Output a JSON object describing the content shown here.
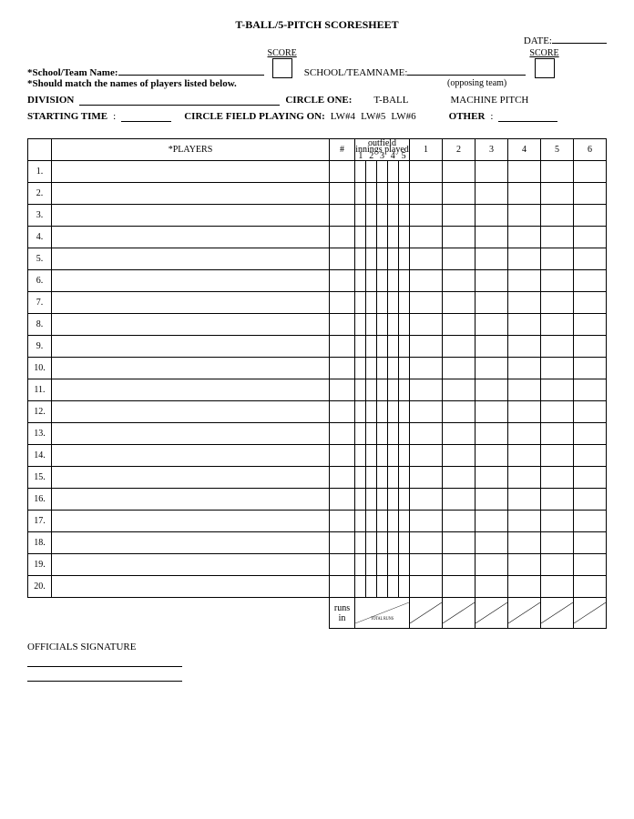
{
  "title": "T-BALL/5-PITCH SCORESHEET",
  "date_label": "DATE:",
  "score_label": "SCORE",
  "school_team_label": "*School/Team Name:",
  "opp_school_label": "SCHOOL/TEAMNAME:",
  "opposing_note": "(opposing team)",
  "match_note": "*Should match the names of players listed below.",
  "division_label": "DIVISION",
  "circle_one_label": "CIRCLE ONE:",
  "tball": "T-BALL",
  "machine": "MACHINE PITCH",
  "start_time_label": "STARTING TIME",
  "circle_field_label": "CIRCLE FIELD PLAYING ON:",
  "fields": [
    "LW#4",
    "LW#5",
    "LW#6"
  ],
  "other_label": "OTHER",
  "players_header": "*PLAYERS",
  "hash": "#",
  "outfield_top": "outfield",
  "outfield_mid": "innings played",
  "outfield_nums": [
    "1",
    "2",
    "3",
    "4",
    "5"
  ],
  "inning_cols": [
    "1",
    "2",
    "3",
    "4",
    "5",
    "6"
  ],
  "row_nums": [
    "1.",
    "2.",
    "3.",
    "4.",
    "5.",
    "6.",
    "7.",
    "8.",
    "9.",
    "10.",
    "11.",
    "12.",
    "13.",
    "14.",
    "15.",
    "16.",
    "17.",
    "18.",
    "19.",
    "20."
  ],
  "runs_in": "runs in",
  "total_runs": "TOTAL RUNS",
  "officials": "OFFICIALS SIGNATURE"
}
